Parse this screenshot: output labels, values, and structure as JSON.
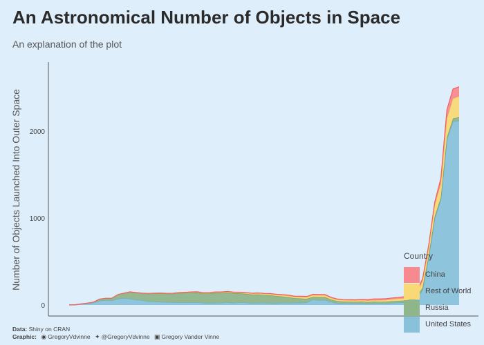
{
  "title": "An Astronomical Number of Objects in Space",
  "subtitle": "An explanation of the plot",
  "caption": {
    "data_label": "Data:",
    "data_text": "Shiny on CRAN",
    "graphic_label": "Graphic:",
    "github": "GregoryVdvinne",
    "twitter": "@GregoryVdvinne",
    "linkedin": "Gregory Vander Vinne"
  },
  "colors": {
    "background": "#dfeefb",
    "china": "#f78a8f",
    "rest_of_world": "#f8d877",
    "russia": "#8fb58a",
    "united_states": "#89c1da"
  },
  "legend": {
    "title": "Country",
    "items": [
      "China",
      "Rest of World",
      "Russia",
      "United States"
    ]
  },
  "chart_data": {
    "type": "area",
    "stacked": true,
    "xlabel": "",
    "ylabel": "Number of Objects Launched Into Outer Space",
    "ylim": [
      -40,
      2750
    ],
    "y_ticks": [
      0,
      1000,
      2000
    ],
    "x_ticks": [],
    "grid": false,
    "legend_position": "bottom-right",
    "x": [
      1957,
      1958,
      1959,
      1960,
      1961,
      1962,
      1963,
      1964,
      1965,
      1966,
      1967,
      1968,
      1969,
      1970,
      1971,
      1972,
      1973,
      1974,
      1975,
      1976,
      1977,
      1978,
      1979,
      1980,
      1981,
      1982,
      1983,
      1984,
      1985,
      1986,
      1987,
      1988,
      1989,
      1990,
      1991,
      1992,
      1993,
      1994,
      1995,
      1996,
      1997,
      1998,
      1999,
      2000,
      2001,
      2002,
      2003,
      2004,
      2005,
      2006,
      2007,
      2008,
      2009,
      2010,
      2011,
      2012,
      2013,
      2014,
      2015,
      2016,
      2017,
      2018,
      2019,
      2020,
      2021
    ],
    "series": [
      {
        "name": "United States",
        "values": [
          0,
          0,
          10,
          16,
          25,
          48,
          55,
          52,
          70,
          78,
          70,
          60,
          55,
          40,
          38,
          35,
          33,
          30,
          30,
          29,
          30,
          31,
          25,
          20,
          23,
          25,
          30,
          24,
          30,
          28,
          20,
          23,
          25,
          20,
          18,
          25,
          23,
          25,
          24,
          28,
          62,
          55,
          58,
          34,
          20,
          18,
          16,
          15,
          17,
          12,
          16,
          18,
          16,
          22,
          26,
          29,
          40,
          70,
          170,
          540,
          990,
          1210,
          1900,
          2110,
          2120
        ]
      },
      {
        "name": "Russia",
        "values": [
          1,
          3,
          3,
          5,
          8,
          20,
          22,
          25,
          50,
          58,
          80,
          82,
          80,
          90,
          95,
          100,
          98,
          100,
          106,
          110,
          112,
          112,
          108,
          112,
          116,
          114,
          114,
          112,
          104,
          100,
          100,
          98,
          90,
          92,
          84,
          72,
          66,
          52,
          50,
          42,
          30,
          35,
          32,
          28,
          25,
          21,
          21,
          21,
          22,
          22,
          22,
          18,
          22,
          22,
          21,
          22,
          22,
          24,
          26,
          26,
          30,
          24,
          28,
          35,
          40
        ]
      },
      {
        "name": "Rest of World",
        "values": [
          0,
          0,
          0,
          0,
          0,
          0,
          0,
          0,
          0,
          0,
          1,
          1,
          1,
          2,
          2,
          3,
          3,
          4,
          4,
          4,
          5,
          6,
          6,
          6,
          7,
          7,
          8,
          8,
          9,
          10,
          11,
          12,
          13,
          14,
          15,
          15,
          16,
          16,
          18,
          20,
          22,
          22,
          22,
          18,
          16,
          16,
          16,
          16,
          16,
          17,
          17,
          18,
          20,
          22,
          24,
          26,
          30,
          40,
          80,
          90,
          130,
          160,
          220,
          230,
          240
        ]
      },
      {
        "name": "China",
        "values": [
          0,
          0,
          0,
          0,
          0,
          0,
          0,
          0,
          0,
          0,
          0,
          0,
          0,
          1,
          1,
          0,
          0,
          1,
          3,
          3,
          3,
          3,
          3,
          4,
          4,
          4,
          4,
          4,
          4,
          5,
          5,
          6,
          6,
          6,
          6,
          7,
          8,
          8,
          8,
          8,
          8,
          8,
          8,
          8,
          8,
          8,
          9,
          9,
          10,
          12,
          15,
          16,
          15,
          15,
          16,
          18,
          20,
          22,
          25,
          30,
          35,
          60,
          100,
          110,
          110
        ]
      }
    ]
  }
}
